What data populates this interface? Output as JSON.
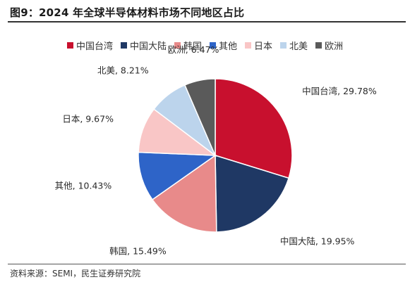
{
  "title": "图9：2024 年全球半导体材料市场不同地区占比",
  "source": "资料来源：SEMI，民生证券研究院",
  "chart_data": {
    "type": "pie",
    "title": "图9：2024 年全球半导体材料市场不同地区占比",
    "legend_position": "top",
    "slices": [
      {
        "name": "中国台湾",
        "value": 29.78,
        "label": "29.78%",
        "color": "#c8102e"
      },
      {
        "name": "中国大陆",
        "value": 19.95,
        "label": "19.95%",
        "color": "#1f3864"
      },
      {
        "name": "韩国",
        "value": 15.49,
        "label": "15.49%",
        "color": "#e88a8a"
      },
      {
        "name": "其他",
        "value": 10.43,
        "label": "10.43%",
        "color": "#2e64c8"
      },
      {
        "name": "日本",
        "value": 9.67,
        "label": "9.67%",
        "color": "#f9c6c6"
      },
      {
        "name": "北美",
        "value": 8.21,
        "label": "8.21%",
        "color": "#bcd4ec"
      },
      {
        "name": "欧洲",
        "value": 6.47,
        "label": "6.47%",
        "color": "#5a5a5a"
      }
    ]
  }
}
